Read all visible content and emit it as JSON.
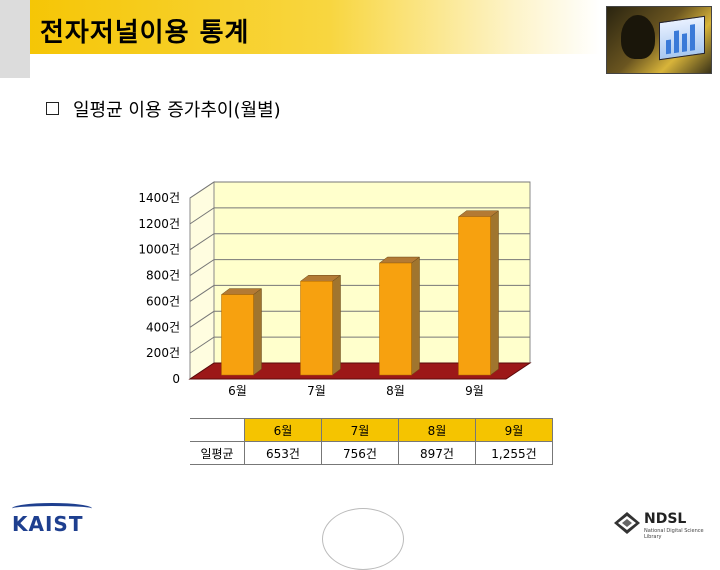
{
  "slide": {
    "title": "전자저널이용 통계",
    "subtitle": "일평균 이용 증가추이(월별)"
  },
  "chart_data": {
    "type": "bar",
    "categories": [
      "6월",
      "7월",
      "8월",
      "9월"
    ],
    "values": [
      653,
      756,
      897,
      1255
    ],
    "y_tick_labels": [
      "0",
      "200건",
      "400건",
      "600건",
      "800건",
      "1000건",
      "1200건",
      "1400건"
    ],
    "ylim": [
      0,
      1400
    ],
    "grid": true,
    "legend": "none",
    "colors": {
      "bar_front": "#f7a10f",
      "bar_top": "#b37a34",
      "bar_side": "#a0752e",
      "back_wall": "#ffffcc",
      "floor": "#9c1818",
      "gridline": "#777777"
    }
  },
  "table": {
    "headers": [
      "6월",
      "7월",
      "8월",
      "9월"
    ],
    "row_label": "일평균",
    "values": [
      "653건",
      "756건",
      "897건",
      "1,255건"
    ]
  },
  "footer": {
    "left_logo": "KAIST",
    "right_logo": "NDSL",
    "right_logo_sub": "National Digital Science Library"
  }
}
